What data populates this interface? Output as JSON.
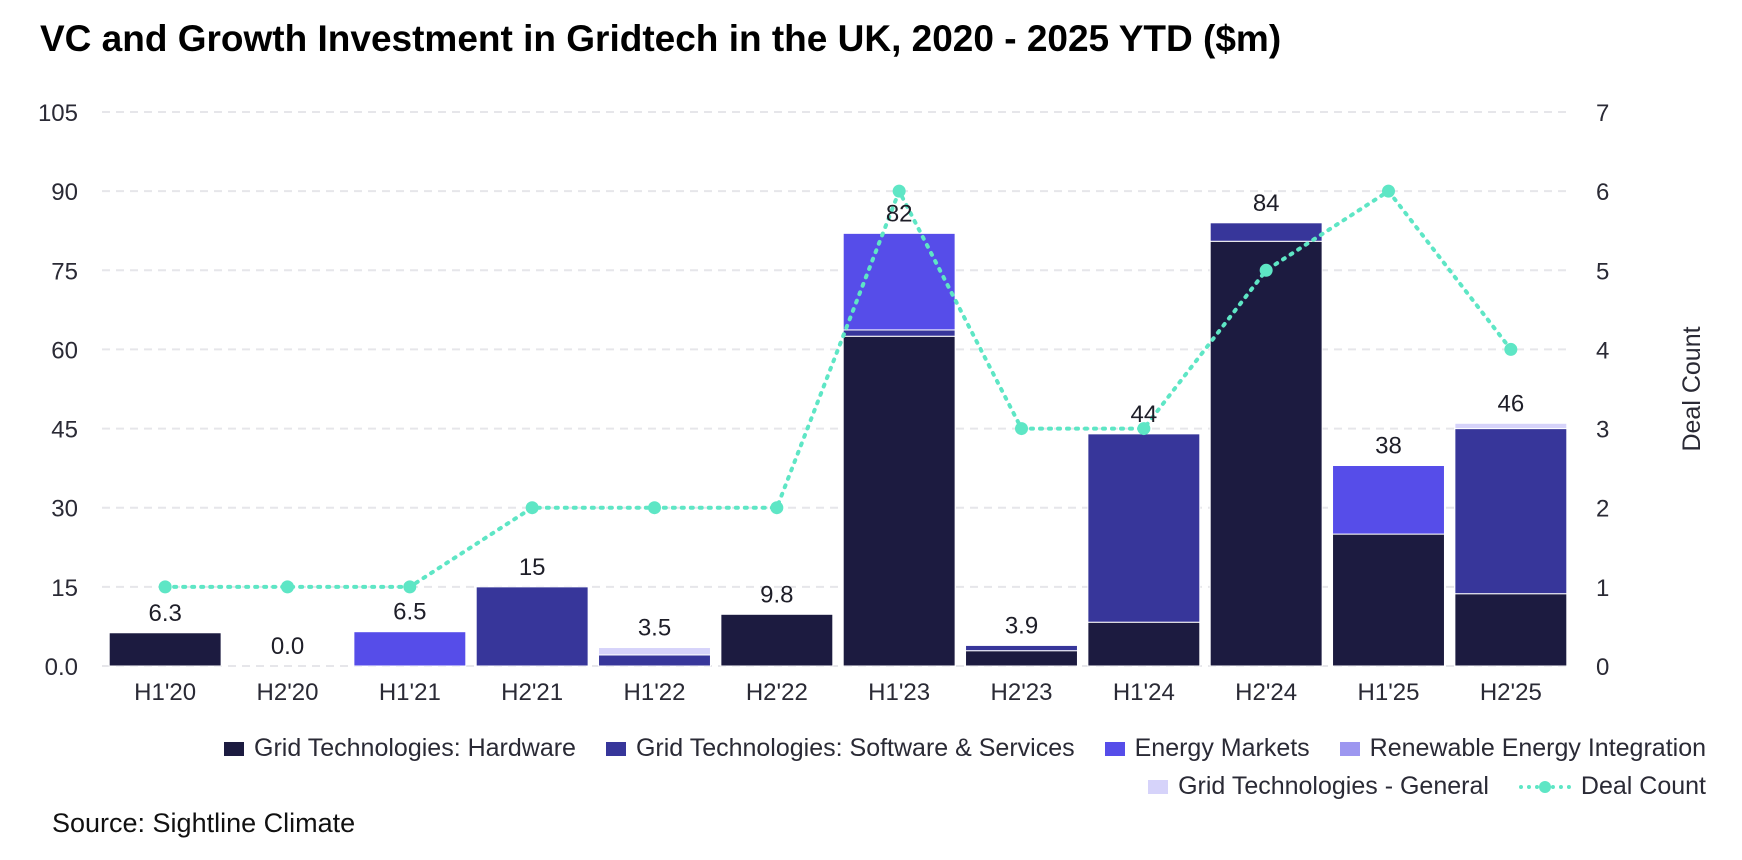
{
  "chart_data": {
    "type": "bar",
    "stacked": true,
    "title": "VC and Growth Investment in Gridtech in the UK, 2020 - 2025 YTD ($m)",
    "categories": [
      "H1'20",
      "H2'20",
      "H1'21",
      "H2'21",
      "H1'22",
      "H2'22",
      "H1'23",
      "H2'23",
      "H1'24",
      "H2'24",
      "H1'25",
      "H2'25"
    ],
    "series": [
      {
        "name": "Grid Technologies: Hardware",
        "color": "#1c1b40",
        "values": [
          6.3,
          0,
          0,
          0,
          0,
          9.8,
          62.5,
          2.9,
          8.3,
          80.5,
          25,
          13.7
        ]
      },
      {
        "name": "Grid Technologies: Software & Services",
        "color": "#37369a",
        "values": [
          0,
          0,
          0,
          15,
          2.1,
          0,
          1.2,
          1.0,
          35.7,
          3.5,
          0,
          31.3
        ]
      },
      {
        "name": "Energy Markets",
        "color": "#564de9",
        "values": [
          0,
          0,
          6.5,
          0,
          0,
          0,
          18.3,
          0,
          0,
          0,
          13,
          0
        ]
      },
      {
        "name": "Renewable Energy Integration",
        "color": "#9d97f0",
        "values": [
          0,
          0,
          0,
          0,
          0,
          0,
          0,
          0,
          0,
          0,
          0,
          0
        ]
      },
      {
        "name": "Grid Technologies - General",
        "color": "#d6d3fa",
        "values": [
          0,
          0,
          0,
          0,
          1.4,
          0,
          0,
          0,
          0,
          0,
          0,
          1.0
        ]
      }
    ],
    "totals_labels": [
      "6.3",
      "0.0",
      "6.5",
      "15",
      "3.5",
      "9.8",
      "82",
      "3.9",
      "44",
      "84",
      "38",
      "46"
    ],
    "line": {
      "name": "Deal Count",
      "color": "#5ee6c5",
      "values": [
        1,
        1,
        1,
        2,
        2,
        2,
        6,
        3,
        3,
        5,
        6,
        4
      ]
    },
    "y_left": {
      "ticks": [
        "0.0",
        "15",
        "30",
        "45",
        "60",
        "75",
        "90",
        "105"
      ],
      "ylim": [
        0,
        105
      ]
    },
    "y_right": {
      "label": "Deal Count",
      "ticks": [
        "0",
        "1",
        "2",
        "3",
        "4",
        "5",
        "6",
        "7"
      ],
      "ylim": [
        0,
        7
      ]
    },
    "grid": true,
    "legend_position": "bottom-right"
  },
  "legend": {
    "row1": [
      {
        "label": "Grid Technologies: Hardware",
        "color": "#1c1b40"
      },
      {
        "label": "Grid Technologies: Software & Services",
        "color": "#37369a"
      },
      {
        "label": "Energy Markets",
        "color": "#564de9"
      },
      {
        "label": "Renewable Energy Integration",
        "color": "#9d97f0"
      }
    ],
    "row2": [
      {
        "label": "Grid Technologies - General",
        "color": "#d6d3fa"
      }
    ],
    "line_label": "Deal Count"
  },
  "source": "Source: Sightline Climate"
}
